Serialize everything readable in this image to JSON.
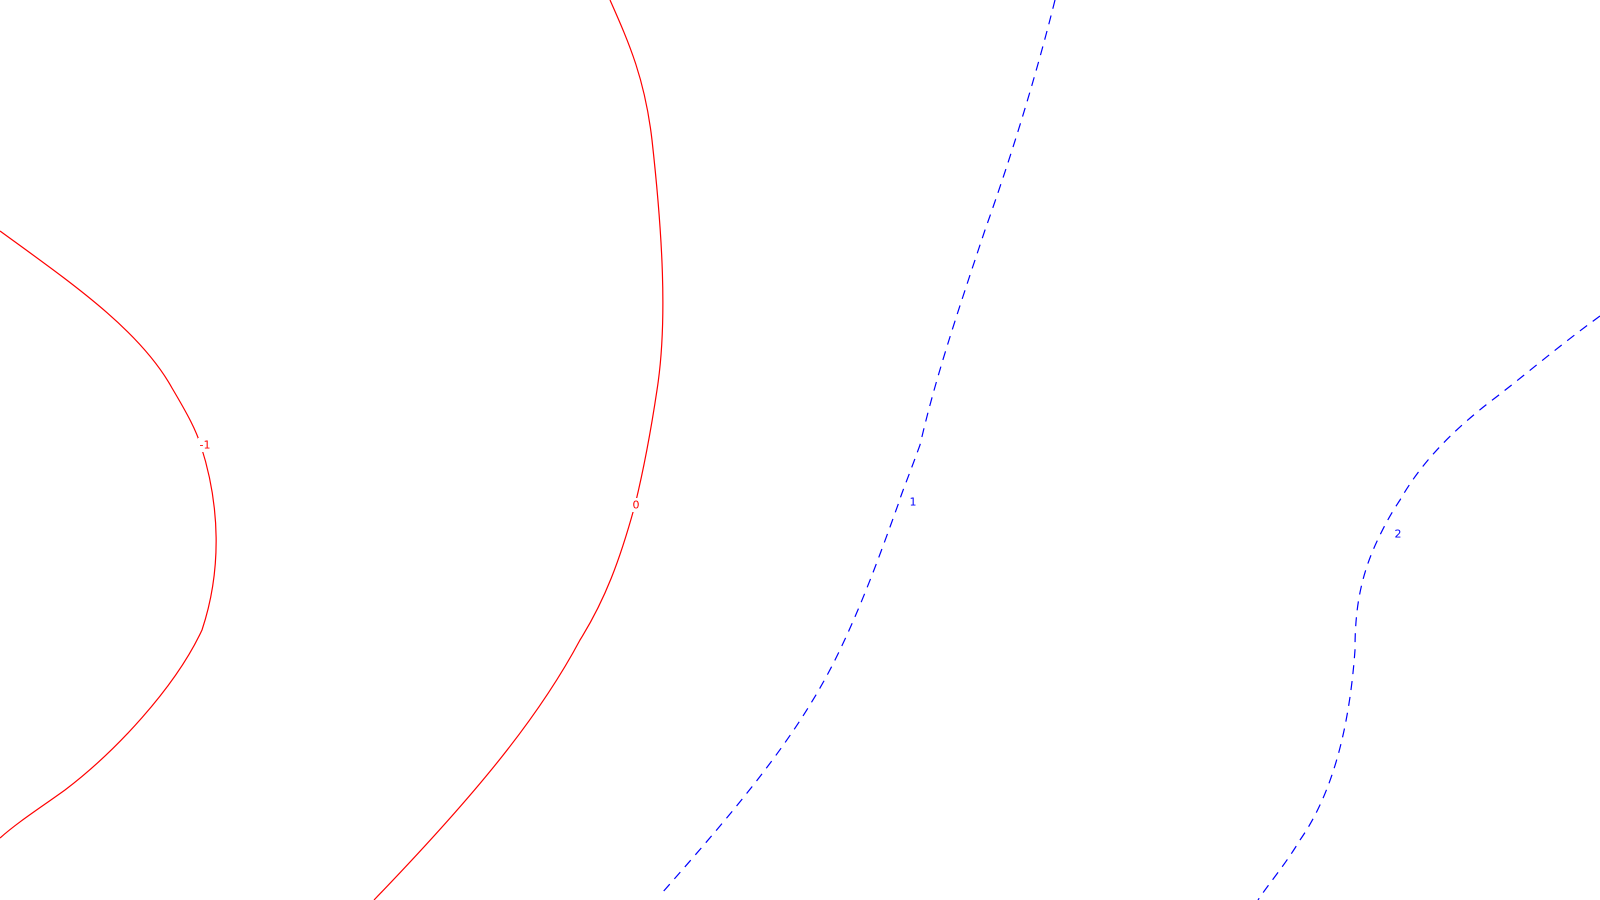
{
  "chart_data": {
    "type": "contour",
    "title": "",
    "xlabel": "",
    "ylabel": "",
    "grid": false,
    "legend": "none",
    "levels": [
      {
        "value": -1,
        "label": "-1",
        "color": "#ff0000",
        "style": "solid"
      },
      {
        "value": 0,
        "label": "0",
        "color": "#ff0000",
        "style": "solid"
      },
      {
        "value": 1,
        "label": "1",
        "color": "#0000ff",
        "style": "dashed"
      },
      {
        "value": 2,
        "label": "2",
        "color": "#0000ff",
        "style": "dashed"
      }
    ]
  }
}
